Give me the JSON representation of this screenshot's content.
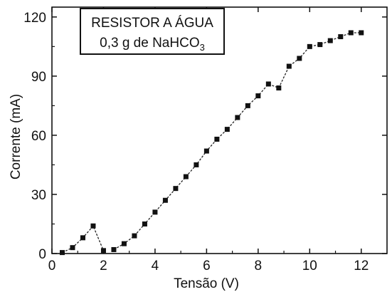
{
  "chart_data": {
    "type": "line",
    "title": "",
    "xlabel": "Tensão (V)",
    "ylabel": "Corrente (mA)",
    "xlim": [
      0,
      13
    ],
    "ylim": [
      0,
      125
    ],
    "x_ticks": [
      0,
      2,
      4,
      6,
      8,
      10,
      12
    ],
    "y_ticks": [
      0,
      30,
      60,
      90,
      120
    ],
    "grid": false,
    "legend": "none",
    "annotation": {
      "line1": "RESISTOR A ÁGUA",
      "line2_prefix": "0,3 g de NaHCO",
      "line2_subscript": "3"
    },
    "series": [
      {
        "x": [
          0.4,
          0.8,
          1.2,
          1.6,
          2.0
        ],
        "y": [
          0.5,
          3,
          8,
          14,
          1.5
        ]
      },
      {
        "x": [
          2.4,
          2.8,
          3.2,
          3.6,
          4.0,
          4.4,
          4.8,
          5.2,
          5.6,
          6.0,
          6.4,
          6.8,
          7.2,
          7.6,
          8.0,
          8.4,
          8.8,
          9.2,
          9.6,
          10.0,
          10.4,
          10.8,
          11.2,
          11.6,
          12.0
        ],
        "y": [
          2,
          5,
          9,
          15,
          21,
          27,
          33,
          39,
          45,
          52,
          58,
          63,
          69,
          75,
          80,
          86,
          84,
          95,
          99,
          105,
          106,
          108,
          110,
          112,
          112
        ]
      }
    ],
    "colors": {
      "line": "#222222",
      "marker": "#111111",
      "axis": "#111111"
    }
  }
}
